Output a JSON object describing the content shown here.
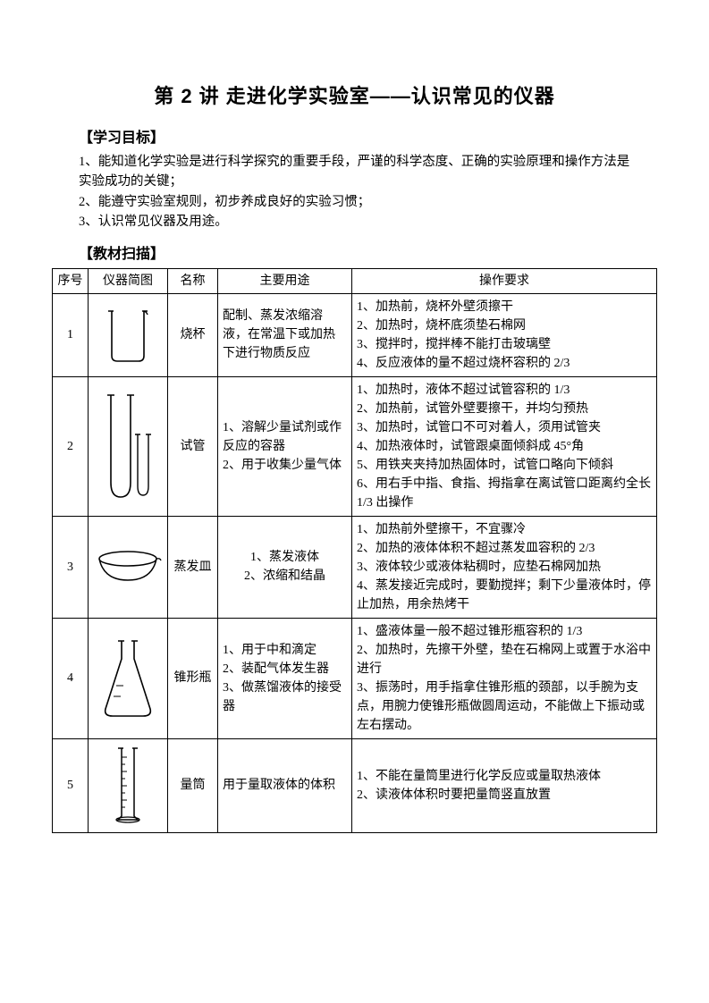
{
  "title": "第 2 讲 走进化学实验室——认识常见的仪器",
  "sections": {
    "goals_heading": "【学习目标】",
    "scan_heading": "【教材扫描】"
  },
  "goals": {
    "g1": "1、能知道化学实验是进行科学探究的重要手段，严谨的科学态度、正确的实验原理和操作方法是实验成功的关键；",
    "g2": "2、能遵守实验室规则，初步养成良好的实验习惯；",
    "g3": "3、认识常见仪器及用途。"
  },
  "table": {
    "headers": {
      "num": "序号",
      "img": "仪器简图",
      "name": "名称",
      "use": "主要用途",
      "req": "操作要求"
    },
    "rows": {
      "r1": {
        "num": "1",
        "name": "烧杯",
        "use": "配制、蒸发浓缩溶液，在常温下或加热下进行物质反应",
        "req": "1、加热前，烧杯外壁须擦干\n2、加热时，烧杯底须垫石棉网\n3、搅拌时，搅拌棒不能打击玻璃壁\n4、反应液体的量不超过烧杯容积的 2/3",
        "icon_name": "beaker-icon"
      },
      "r2": {
        "num": "2",
        "name": "试管",
        "use": "1、溶解少量试剂或作反应的容器\n2、用于收集少量气体",
        "req": "1、加热时，液体不超过试管容积的 1/3\n2、加热前，试管外壁要擦干，并均匀预热\n3、加热时，试管口不可对着人，须用试管夹\n4、加热液体时，试管跟桌面倾斜成 45°角\n5、用铁夹夹持加热固体时，试管口略向下倾斜\n6、用右手中指、食指、拇指拿在离试管口距离约全长 1/3 出操作",
        "icon_name": "test-tube-icon"
      },
      "r3": {
        "num": "3",
        "name": "蒸发皿",
        "use": "1、蒸发液体\n2、浓缩和结晶",
        "req": "1、加热前外壁擦干，不宜骤冷\n2、加热的液体体积不超过蒸发皿容积的 2/3\n3、液体较少或液体粘稠时，应垫石棉网加热\n4、蒸发接近完成时，要勤搅拌；剩下少量液体时，停止加热，用余热烤干",
        "icon_name": "evaporating-dish-icon"
      },
      "r4": {
        "num": "4",
        "name": "锥形瓶",
        "use": "1、用于中和滴定\n2、装配气体发生器\n3、做蒸馏液体的接受器",
        "req": "1、盛液体量一般不超过锥形瓶容积的 1/3\n2、加热时，先擦干外壁，垫在石棉网上或置于水浴中进行\n3、振荡时，用手指拿住锥形瓶的颈部，以手腕为支点，用腕力使锥形瓶做圆周运动，不能做上下振动或左右摆动。",
        "icon_name": "conical-flask-icon"
      },
      "r5": {
        "num": "5",
        "name": "量筒",
        "use": "用于量取液体的体积",
        "req": "1、不能在量筒里进行化学反应或量取热液体\n2、读液体体积时要把量筒竖直放置",
        "icon_name": "graduated-cylinder-icon"
      }
    }
  },
  "style": {
    "stroke": "#000000",
    "stroke_width": 1.4,
    "background": "#ffffff",
    "text_color": "#000000",
    "body_fontsize": 14,
    "title_fontsize": 22
  }
}
